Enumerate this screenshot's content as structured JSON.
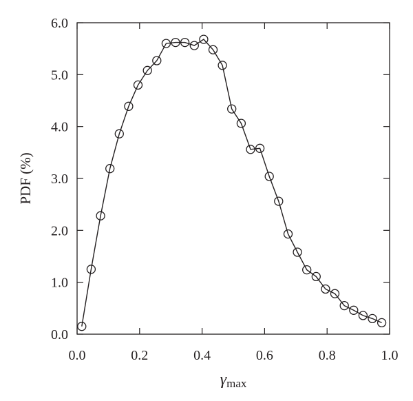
{
  "chart_data": {
    "type": "line",
    "title": "",
    "xlabel_main": "γ",
    "xlabel_sub": "max",
    "ylabel": "PDF (%)",
    "xlim": [
      0.0,
      1.0
    ],
    "ylim": [
      0.0,
      6.0
    ],
    "x_ticks": [
      "0.0",
      "0.2",
      "0.4",
      "0.6",
      "0.8",
      "1.0"
    ],
    "y_ticks": [
      "0.0",
      "1.0",
      "2.0",
      "3.0",
      "4.0",
      "5.0",
      "6.0"
    ],
    "grid": false,
    "marker": "open-circle",
    "line_color": "#231f20",
    "series": [
      {
        "x": [
          0.015,
          0.045,
          0.075,
          0.105,
          0.135,
          0.165,
          0.195,
          0.225,
          0.255,
          0.285,
          0.315,
          0.345,
          0.375,
          0.405,
          0.435,
          0.465,
          0.495,
          0.525,
          0.555,
          0.585,
          0.615,
          0.645,
          0.675,
          0.705,
          0.735,
          0.765,
          0.795,
          0.825,
          0.855,
          0.885,
          0.915,
          0.945,
          0.975
        ],
        "y": [
          0.15,
          1.25,
          2.28,
          3.19,
          3.86,
          4.39,
          4.8,
          5.08,
          5.27,
          5.6,
          5.62,
          5.62,
          5.56,
          5.68,
          5.48,
          5.18,
          4.34,
          4.06,
          3.56,
          3.58,
          3.04,
          2.56,
          1.93,
          1.58,
          1.24,
          1.11,
          0.87,
          0.78,
          0.55,
          0.46,
          0.36,
          0.3,
          0.22
        ]
      }
    ]
  }
}
